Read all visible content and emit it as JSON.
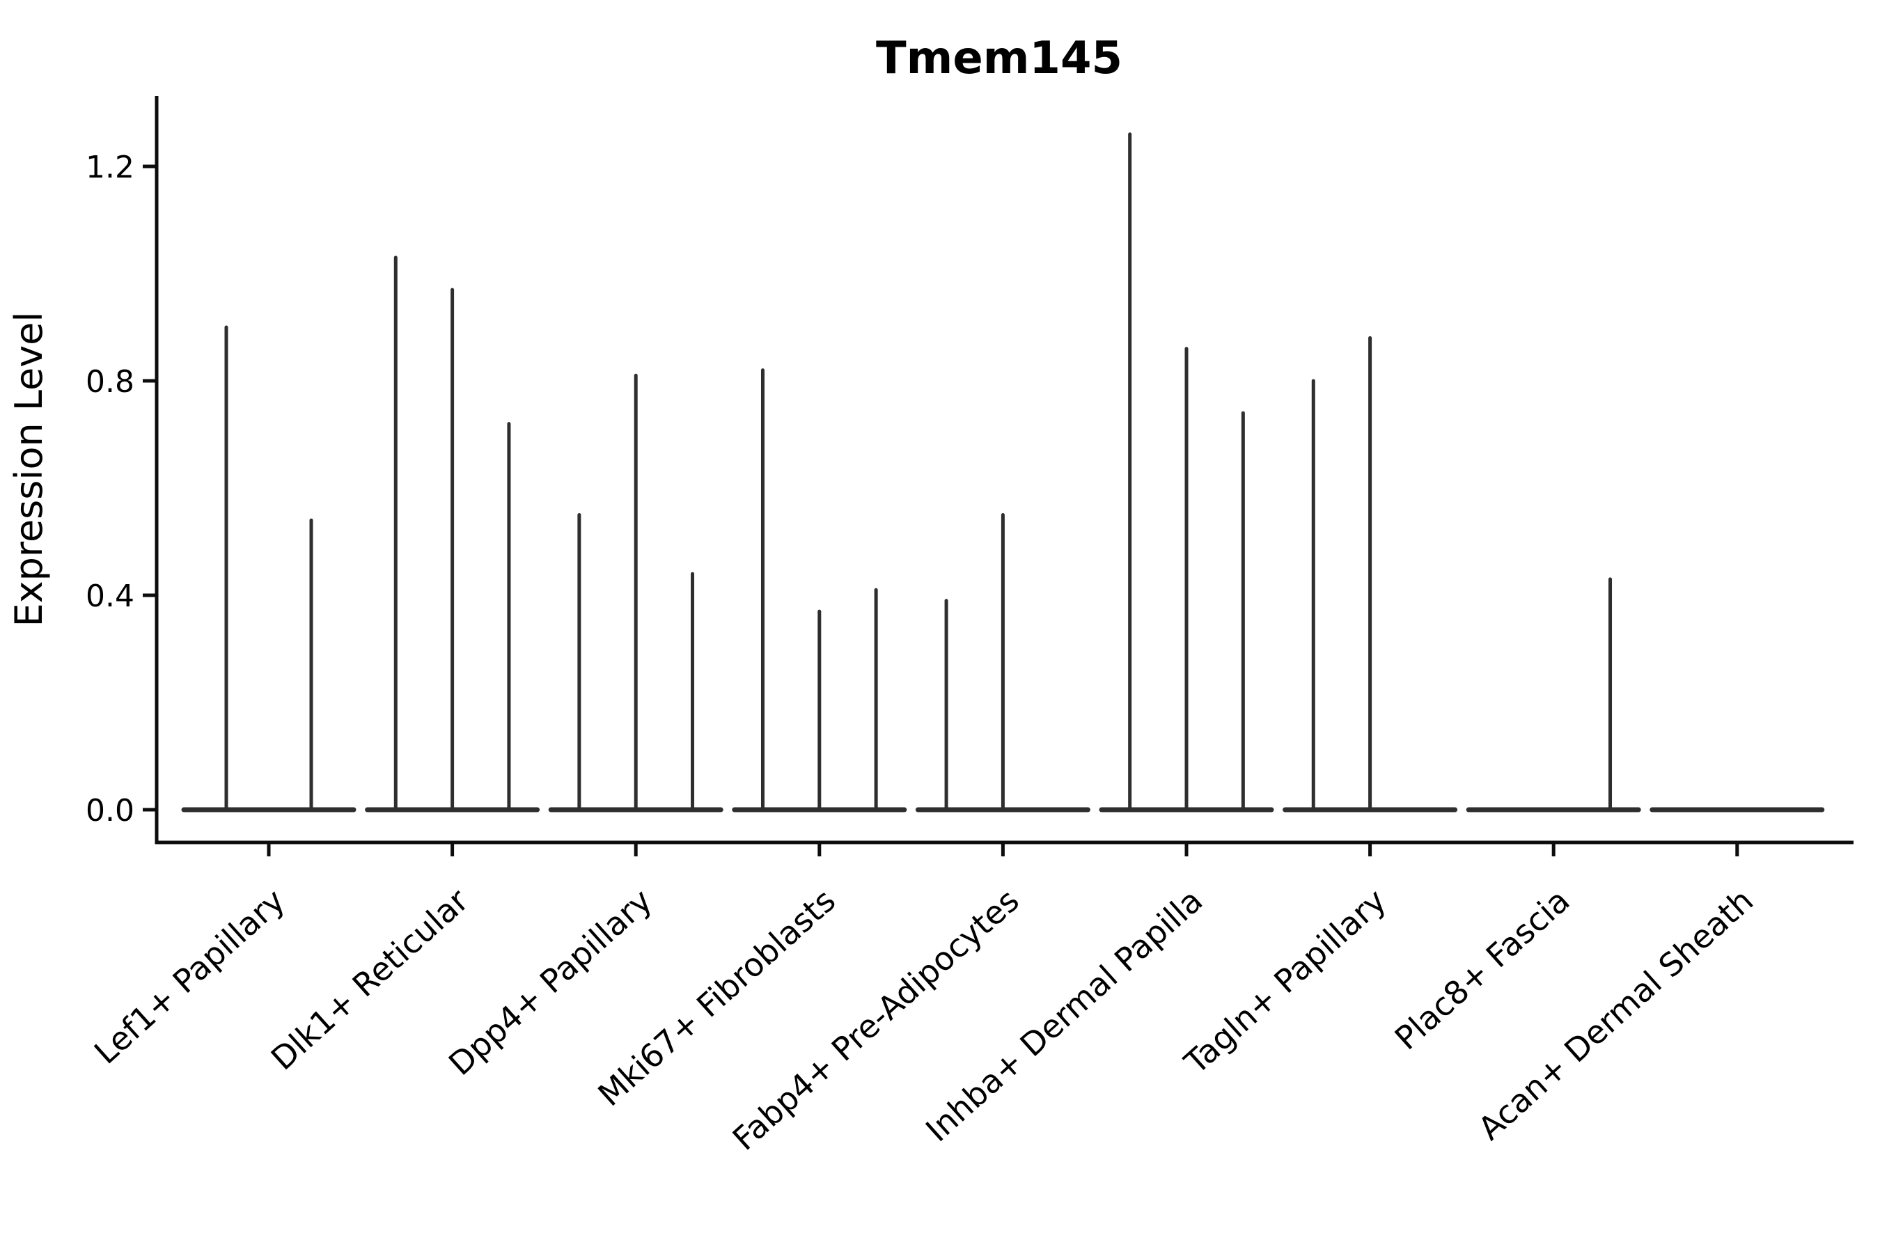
{
  "chart_data": {
    "type": "violin",
    "title": "Tmem145",
    "ylabel": "Expression Level",
    "xlabel": "",
    "ylim": [
      -0.06,
      1.33
    ],
    "yticks": [
      0.0,
      0.4,
      0.8,
      1.2
    ],
    "grid": false,
    "legend": null,
    "categories": [
      "Lef1+ Papillary",
      "Dlk1+ Reticular",
      "Dpp4+ Papillary",
      "Mki67+ Fibroblasts",
      "Fabp4+ Pre-Adipocytes",
      "Inhba+ Dermal Papilla",
      "Tagln+ Papillary",
      "Plac8+ Fascia",
      "Acan+ Dermal Sheath"
    ],
    "spike_values": [
      [
        0.9,
        0.54
      ],
      [
        1.03,
        0.97,
        0.72
      ],
      [
        0.55,
        0.81,
        0.44
      ],
      [
        0.82,
        0.37,
        0.41
      ],
      [
        0.39,
        0.55,
        0
      ],
      [
        1.26,
        0.86,
        0.74
      ],
      [
        0.8,
        0.88,
        0
      ],
      [
        0,
        0,
        0.43
      ],
      [
        0,
        0,
        0
      ]
    ],
    "colors": {
      "violin_line": "#2e2e2e",
      "axis": "#0d0d0d",
      "text": "#000000",
      "background": "#ffffff"
    }
  }
}
